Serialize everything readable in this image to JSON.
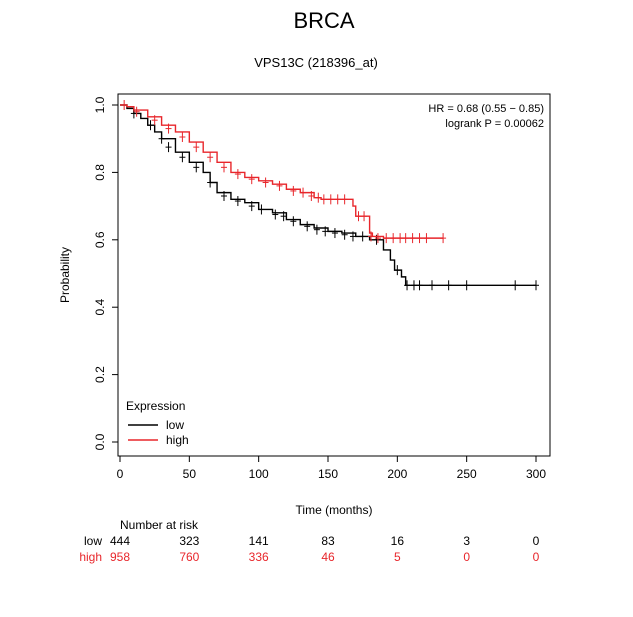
{
  "chart_data": {
    "type": "line",
    "title": "BRCA",
    "subtitle": "VPS13C (218396_at)",
    "xlabel": "Time (months)",
    "ylabel": "Probability",
    "xlim": [
      0,
      300
    ],
    "ylim": [
      0,
      1
    ],
    "xticks": [
      "0",
      "50",
      "100",
      "150",
      "200",
      "250",
      "300"
    ],
    "yticks": [
      "0.0",
      "0.2",
      "0.4",
      "0.6",
      "0.8",
      "1.0"
    ],
    "grid": false,
    "annotations": {
      "hr": "HR = 0.68 (0.55 − 0.85)",
      "logrank": "logrank P = 0.00062"
    },
    "legend": {
      "title": "Expression",
      "placement": "bottom-left",
      "entries": [
        {
          "label": "low",
          "color": "#000000"
        },
        {
          "label": "high",
          "color": "#e8262b"
        }
      ]
    },
    "series": [
      {
        "name": "low",
        "color": "#000000",
        "points": [
          [
            0,
            1.0
          ],
          [
            5,
            0.99
          ],
          [
            10,
            0.975
          ],
          [
            15,
            0.96
          ],
          [
            20,
            0.94
          ],
          [
            25,
            0.92
          ],
          [
            30,
            0.9
          ],
          [
            40,
            0.86
          ],
          [
            50,
            0.83
          ],
          [
            60,
            0.8
          ],
          [
            65,
            0.77
          ],
          [
            70,
            0.74
          ],
          [
            80,
            0.72
          ],
          [
            90,
            0.71
          ],
          [
            100,
            0.69
          ],
          [
            110,
            0.68
          ],
          [
            120,
            0.66
          ],
          [
            130,
            0.645
          ],
          [
            140,
            0.635
          ],
          [
            150,
            0.625
          ],
          [
            160,
            0.62
          ],
          [
            170,
            0.61
          ],
          [
            180,
            0.6
          ],
          [
            190,
            0.57
          ],
          [
            195,
            0.54
          ],
          [
            198,
            0.51
          ],
          [
            203,
            0.49
          ],
          [
            206,
            0.465
          ],
          [
            300,
            0.465
          ]
        ],
        "censors": [
          [
            10,
            0.975
          ],
          [
            22,
            0.94
          ],
          [
            30,
            0.9
          ],
          [
            35,
            0.875
          ],
          [
            45,
            0.845
          ],
          [
            55,
            0.815
          ],
          [
            65,
            0.77
          ],
          [
            75,
            0.73
          ],
          [
            85,
            0.715
          ],
          [
            95,
            0.7
          ],
          [
            102,
            0.69
          ],
          [
            112,
            0.675
          ],
          [
            118,
            0.67
          ],
          [
            125,
            0.655
          ],
          [
            135,
            0.64
          ],
          [
            142,
            0.63
          ],
          [
            148,
            0.625
          ],
          [
            155,
            0.62
          ],
          [
            162,
            0.615
          ],
          [
            168,
            0.61
          ],
          [
            175,
            0.61
          ],
          [
            185,
            0.6
          ],
          [
            200,
            0.51
          ],
          [
            207,
            0.465
          ],
          [
            212,
            0.465
          ],
          [
            216,
            0.465
          ],
          [
            225,
            0.465
          ],
          [
            237,
            0.465
          ],
          [
            250,
            0.465
          ],
          [
            285,
            0.465
          ],
          [
            300,
            0.465
          ]
        ]
      },
      {
        "name": "high",
        "color": "#e8262b",
        "points": [
          [
            0,
            1.0
          ],
          [
            5,
            0.995
          ],
          [
            10,
            0.985
          ],
          [
            20,
            0.965
          ],
          [
            30,
            0.94
          ],
          [
            40,
            0.92
          ],
          [
            50,
            0.89
          ],
          [
            60,
            0.86
          ],
          [
            70,
            0.83
          ],
          [
            80,
            0.8
          ],
          [
            90,
            0.785
          ],
          [
            100,
            0.775
          ],
          [
            110,
            0.765
          ],
          [
            120,
            0.75
          ],
          [
            130,
            0.74
          ],
          [
            140,
            0.725
          ],
          [
            145,
            0.72
          ],
          [
            165,
            0.72
          ],
          [
            168,
            0.7
          ],
          [
            170,
            0.67
          ],
          [
            178,
            0.67
          ],
          [
            180,
            0.62
          ],
          [
            182,
            0.61
          ],
          [
            190,
            0.605
          ],
          [
            233,
            0.605
          ]
        ],
        "censors": [
          [
            3,
            1.0
          ],
          [
            12,
            0.98
          ],
          [
            25,
            0.955
          ],
          [
            35,
            0.93
          ],
          [
            45,
            0.905
          ],
          [
            55,
            0.875
          ],
          [
            65,
            0.845
          ],
          [
            75,
            0.815
          ],
          [
            85,
            0.795
          ],
          [
            95,
            0.78
          ],
          [
            105,
            0.77
          ],
          [
            115,
            0.76
          ],
          [
            125,
            0.745
          ],
          [
            132,
            0.74
          ],
          [
            138,
            0.73
          ],
          [
            143,
            0.725
          ],
          [
            147,
            0.72
          ],
          [
            152,
            0.72
          ],
          [
            157,
            0.72
          ],
          [
            162,
            0.72
          ],
          [
            172,
            0.67
          ],
          [
            176,
            0.67
          ],
          [
            181,
            0.61
          ],
          [
            186,
            0.605
          ],
          [
            192,
            0.605
          ],
          [
            197,
            0.605
          ],
          [
            202,
            0.605
          ],
          [
            206,
            0.605
          ],
          [
            211,
            0.605
          ],
          [
            216,
            0.605
          ],
          [
            221,
            0.605
          ],
          [
            233,
            0.605
          ]
        ]
      }
    ],
    "risk_table": {
      "header": "Number at risk",
      "rows": [
        {
          "label": "low",
          "color": "#000000",
          "values": [
            "444",
            "323",
            "141",
            "83",
            "16",
            "3",
            "0"
          ]
        },
        {
          "label": "high",
          "color": "#e8262b",
          "values": [
            "958",
            "760",
            "336",
            "46",
            "5",
            "0",
            "0"
          ]
        }
      ]
    }
  }
}
